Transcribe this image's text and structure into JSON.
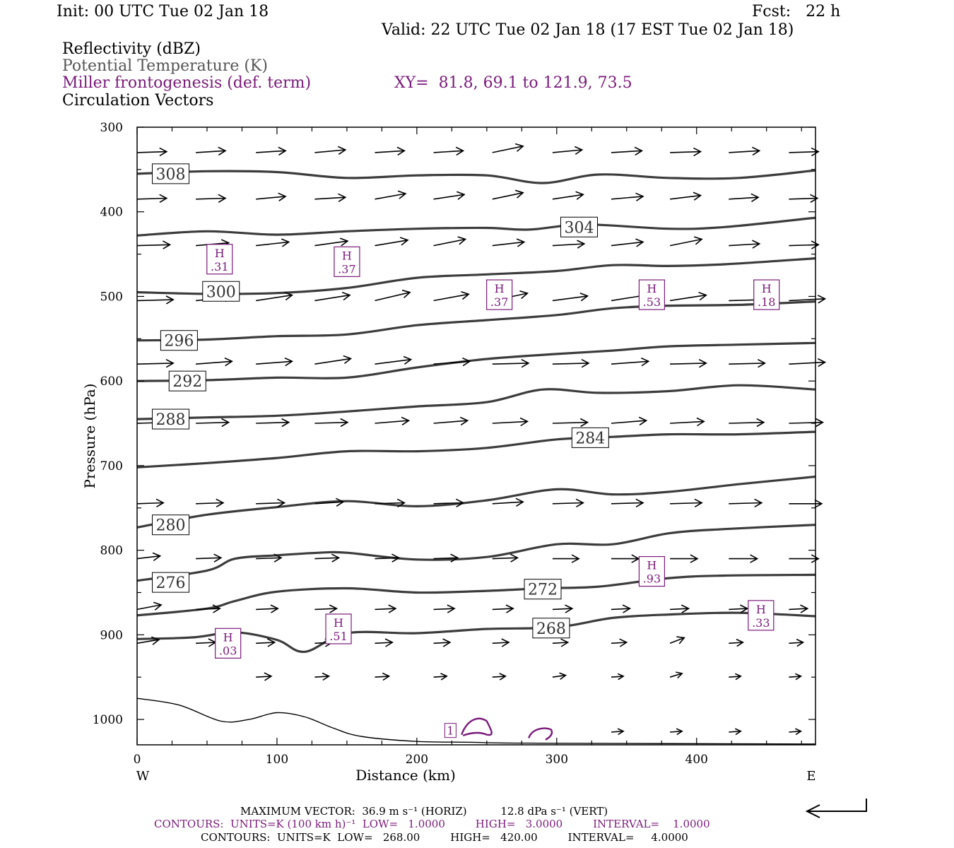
{
  "header": {
    "init": "Init: 00 UTC Tue 02 Jan 18",
    "fcst": "Fcst:   22 h",
    "valid": "Valid: 22 UTC Tue 02 Jan 18 (17 EST Tue 02 Jan 18)",
    "fields": [
      "Reflectivity (dBZ)",
      "Potential Temperature (K)",
      "Miller frontogenesis (def. term)",
      "Circulation Vectors"
    ],
    "xy": "XY=  81.8, 69.1 to 121.9, 73.5"
  },
  "colors": {
    "theta": "#3c3c3c",
    "fronto": "#7a1a7a",
    "vector": "#000000",
    "terrain": "#000000"
  },
  "chart_data": {
    "type": "line",
    "xlabel": "Distance (km)",
    "ylabel": "Pressure (hPa)",
    "xlim": [
      0,
      485
    ],
    "ylim": [
      1030,
      300
    ],
    "xticks": [
      0,
      100,
      200,
      300,
      400
    ],
    "yticks": [
      300,
      400,
      500,
      600,
      700,
      800,
      900,
      1000
    ],
    "x_left_label": "W",
    "x_right_label": "E",
    "theta_contours": [
      {
        "label": "308",
        "label_at": [
          24,
          355
        ],
        "points": [
          [
            0,
            355
          ],
          [
            50,
            352
          ],
          [
            100,
            353
          ],
          [
            150,
            360
          ],
          [
            200,
            357
          ],
          [
            250,
            357
          ],
          [
            290,
            366
          ],
          [
            330,
            356
          ],
          [
            380,
            360
          ],
          [
            430,
            360
          ],
          [
            485,
            351
          ]
        ]
      },
      {
        "label": "304",
        "label_at": [
          316,
          418
        ],
        "points": [
          [
            0,
            428
          ],
          [
            50,
            423
          ],
          [
            100,
            427
          ],
          [
            150,
            423
          ],
          [
            200,
            420
          ],
          [
            250,
            419
          ],
          [
            280,
            421
          ],
          [
            320,
            415
          ],
          [
            380,
            420
          ],
          [
            420,
            418
          ],
          [
            485,
            407
          ]
        ]
      },
      {
        "label": "300",
        "label_at": [
          60,
          494
        ],
        "points": [
          [
            0,
            495
          ],
          [
            50,
            497
          ],
          [
            100,
            496
          ],
          [
            150,
            490
          ],
          [
            200,
            478
          ],
          [
            250,
            474
          ],
          [
            300,
            470
          ],
          [
            340,
            463
          ],
          [
            380,
            464
          ],
          [
            420,
            462
          ],
          [
            485,
            455
          ]
        ]
      },
      {
        "label": "296",
        "label_at": [
          30,
          552
        ],
        "points": [
          [
            0,
            552
          ],
          [
            50,
            551
          ],
          [
            100,
            547
          ],
          [
            150,
            545
          ],
          [
            200,
            534
          ],
          [
            250,
            528
          ],
          [
            300,
            522
          ],
          [
            340,
            514
          ],
          [
            380,
            511
          ],
          [
            430,
            510
          ],
          [
            485,
            506
          ]
        ]
      },
      {
        "label": "292",
        "label_at": [
          36,
          600
        ],
        "points": [
          [
            0,
            600
          ],
          [
            50,
            599
          ],
          [
            100,
            596
          ],
          [
            150,
            596
          ],
          [
            200,
            584
          ],
          [
            250,
            574
          ],
          [
            300,
            568
          ],
          [
            340,
            564
          ],
          [
            380,
            559
          ],
          [
            430,
            557
          ],
          [
            485,
            555
          ]
        ]
      },
      {
        "label": "288",
        "label_at": [
          24,
          645
        ],
        "points": [
          [
            0,
            645
          ],
          [
            50,
            643
          ],
          [
            100,
            641
          ],
          [
            150,
            636
          ],
          [
            200,
            630
          ],
          [
            250,
            625
          ],
          [
            290,
            610
          ],
          [
            330,
            614
          ],
          [
            380,
            612
          ],
          [
            430,
            605
          ],
          [
            485,
            610
          ]
        ]
      },
      {
        "label": "284",
        "label_at": [
          324,
          667
        ],
        "points": [
          [
            0,
            702
          ],
          [
            50,
            697
          ],
          [
            100,
            691
          ],
          [
            150,
            683
          ],
          [
            200,
            683
          ],
          [
            250,
            679
          ],
          [
            300,
            669
          ],
          [
            340,
            666
          ],
          [
            380,
            663
          ],
          [
            430,
            663
          ],
          [
            485,
            660
          ]
        ]
      },
      {
        "label": "280",
        "label_at": [
          24,
          770
        ],
        "points": [
          [
            0,
            773
          ],
          [
            50,
            758
          ],
          [
            100,
            749
          ],
          [
            150,
            742
          ],
          [
            200,
            748
          ],
          [
            250,
            741
          ],
          [
            300,
            728
          ],
          [
            340,
            734
          ],
          [
            380,
            731
          ],
          [
            430,
            722
          ],
          [
            485,
            713
          ]
        ]
      },
      {
        "label": "276",
        "label_at": [
          24,
          838
        ],
        "points": [
          [
            0,
            836
          ],
          [
            50,
            824
          ],
          [
            70,
            810
          ],
          [
            100,
            806
          ],
          [
            130,
            803
          ],
          [
            150,
            803
          ],
          [
            200,
            811
          ],
          [
            250,
            808
          ],
          [
            300,
            793
          ],
          [
            340,
            793
          ],
          [
            380,
            780
          ],
          [
            420,
            775
          ],
          [
            485,
            770
          ]
        ]
      },
      {
        "label": "272",
        "label_at": [
          290,
          846
        ],
        "points": [
          [
            0,
            877
          ],
          [
            50,
            869
          ],
          [
            70,
            860
          ],
          [
            100,
            849
          ],
          [
            150,
            845
          ],
          [
            200,
            850
          ],
          [
            250,
            848
          ],
          [
            290,
            845
          ],
          [
            330,
            843
          ],
          [
            380,
            833
          ],
          [
            420,
            830
          ],
          [
            485,
            829
          ]
        ]
      },
      {
        "label": "268",
        "label_at": [
          296,
          892
        ],
        "points": [
          [
            0,
            905
          ],
          [
            40,
            903
          ],
          [
            70,
            897
          ],
          [
            100,
            906
          ],
          [
            120,
            920
          ],
          [
            150,
            898
          ],
          [
            200,
            898
          ],
          [
            250,
            893
          ],
          [
            300,
            891
          ],
          [
            340,
            880
          ],
          [
            380,
            876
          ],
          [
            430,
            874
          ],
          [
            485,
            878
          ]
        ]
      }
    ],
    "terrain_line": [
      [
        0,
        975
      ],
      [
        30,
        983
      ],
      [
        60,
        1002
      ],
      [
        80,
        1000
      ],
      [
        100,
        992
      ],
      [
        120,
        997
      ],
      [
        140,
        1010
      ],
      [
        160,
        1020
      ],
      [
        200,
        1026
      ],
      [
        240,
        1027
      ],
      [
        280,
        1028
      ],
      [
        485,
        1029
      ]
    ],
    "fronto_maxima": [
      {
        "label": "H",
        "value": ".31",
        "at": [
          59,
          456
        ]
      },
      {
        "label": "H",
        "value": ".37",
        "at": [
          150,
          459
        ]
      },
      {
        "label": "H",
        "value": ".37",
        "at": [
          259,
          498
        ]
      },
      {
        "label": "H",
        "value": ".53",
        "at": [
          368,
          498
        ]
      },
      {
        "label": "H",
        "value": ".18",
        "at": [
          450,
          498
        ]
      },
      {
        "label": "H",
        "value": ".93",
        "at": [
          368,
          825
        ]
      },
      {
        "label": "H",
        "value": ".33",
        "at": [
          446,
          877
        ]
      },
      {
        "label": "H",
        "value": ".51",
        "at": [
          144,
          893
        ]
      },
      {
        "label": "H",
        "value": ".03",
        "at": [
          65,
          910
        ]
      }
    ],
    "reflectivity_label": "1",
    "vector_rows": [
      {
        "p": 330,
        "x": [
          0,
          42,
          85,
          127,
          170,
          212,
          254,
          297,
          339,
          381,
          423,
          466
        ],
        "u": [
          27,
          27,
          27,
          28,
          27,
          27,
          28,
          27,
          28,
          28,
          28,
          27
        ],
        "w": [
          -1,
          -2,
          -2,
          -3,
          -2,
          -2,
          -7,
          -3,
          -2,
          -1,
          -2,
          -1
        ]
      },
      {
        "p": 385,
        "x": [
          0,
          42,
          85,
          127,
          170,
          212,
          254,
          297,
          339,
          381,
          423,
          466
        ],
        "u": [
          27,
          27,
          27,
          28,
          28,
          28,
          28,
          28,
          29,
          28,
          27,
          26
        ],
        "w": [
          -1,
          -1,
          -3,
          -2,
          -6,
          -5,
          -7,
          -5,
          -3,
          -4,
          -2,
          -1
        ]
      },
      {
        "p": 440,
        "x": [
          0,
          42,
          85,
          127,
          170,
          212,
          254,
          297,
          339,
          381,
          423,
          466
        ],
        "u": [
          30,
          30,
          30,
          30,
          30,
          29,
          29,
          29,
          29,
          29,
          28,
          27
        ],
        "w": [
          -1,
          -3,
          -4,
          -5,
          -6,
          -7,
          -4,
          -2,
          -4,
          -7,
          -2,
          -1
        ]
      },
      {
        "p": 505,
        "x": [
          0,
          42,
          85,
          127,
          170,
          212,
          254,
          297,
          339,
          381,
          423,
          466
        ],
        "u": [
          33,
          33,
          33,
          32,
          32,
          32,
          32,
          32,
          32,
          33,
          33,
          33
        ],
        "w": [
          -1,
          -4,
          -6,
          -6,
          -9,
          -7,
          -8,
          -5,
          -6,
          -6,
          -1,
          -2
        ]
      },
      {
        "p": 580,
        "x": [
          0,
          42,
          85,
          127,
          170,
          212,
          254,
          297,
          339,
          381,
          423,
          466
        ],
        "u": [
          33,
          33,
          33,
          33,
          33,
          33,
          33,
          33,
          34,
          33,
          33,
          33
        ],
        "w": [
          -1,
          -3,
          -3,
          -6,
          -5,
          -3,
          -1,
          -1,
          -3,
          -1,
          -1,
          -2
        ]
      },
      {
        "p": 650,
        "x": [
          0,
          42,
          85,
          127,
          170,
          212,
          254,
          297,
          339,
          381,
          423,
          466
        ],
        "u": [
          30,
          30,
          30,
          30,
          31,
          31,
          32,
          32,
          32,
          31,
          32,
          31
        ],
        "w": [
          -1,
          -1,
          -1,
          -1,
          -3,
          -3,
          -2,
          -1,
          -3,
          -2,
          -1,
          -1
        ]
      },
      {
        "p": 745,
        "x": [
          0,
          42,
          85,
          127,
          170,
          212,
          254,
          297,
          339,
          381,
          423,
          466
        ],
        "u": [
          24,
          25,
          26,
          26,
          27,
          27,
          28,
          28,
          29,
          29,
          30,
          30
        ],
        "w": [
          -1,
          -1,
          -1,
          -2,
          -1,
          -1,
          -2,
          -1,
          -1,
          -1,
          -1,
          0
        ]
      },
      {
        "p": 810,
        "x": [
          0,
          42,
          85,
          127,
          170,
          212,
          254,
          297,
          339,
          381,
          423,
          466
        ],
        "u": [
          21,
          23,
          23,
          22,
          22,
          22,
          23,
          24,
          25,
          25,
          26,
          27
        ],
        "w": [
          -3,
          -1,
          -1,
          -1,
          -1,
          -1,
          -1,
          0,
          0,
          0,
          0,
          0
        ]
      },
      {
        "p": 870,
        "x": [
          0,
          42,
          85,
          127,
          170,
          212,
          254,
          297,
          339,
          381,
          423,
          466
        ],
        "u": [
          22,
          22,
          20,
          20,
          19,
          19,
          19,
          18,
          17,
          17,
          17,
          17
        ],
        "w": [
          -5,
          -1,
          -1,
          -1,
          -1,
          -1,
          -1,
          -1,
          -1,
          -1,
          -1,
          -1
        ]
      },
      {
        "p": 910,
        "x": [
          0,
          42,
          85,
          127,
          170,
          212,
          254,
          297,
          339,
          381,
          423,
          466
        ],
        "u": [
          20,
          18,
          17,
          16,
          16,
          15,
          15,
          14,
          14,
          13,
          13,
          13
        ],
        "w": [
          -4,
          -1,
          -1,
          -1,
          -1,
          -1,
          -1,
          -1,
          -1,
          -6,
          -1,
          -1
        ]
      },
      {
        "p": 950,
        "x": [
          0,
          42,
          85,
          127,
          170,
          212,
          254,
          297,
          339,
          381,
          423,
          466
        ],
        "u": [
          0,
          0,
          14,
          13,
          13,
          12,
          12,
          12,
          11,
          11,
          11,
          11
        ],
        "w": [
          0,
          0,
          -1,
          -1,
          -1,
          -1,
          -1,
          -2,
          -1,
          -4,
          -1,
          -1
        ]
      },
      {
        "p": 1015,
        "x": [
          0,
          42,
          85,
          127,
          170,
          212,
          254,
          297,
          339,
          381,
          423,
          466
        ],
        "u": [
          0,
          0,
          0,
          0,
          0,
          0,
          0,
          0,
          11,
          11,
          11,
          11
        ],
        "w": [
          0,
          0,
          0,
          0,
          0,
          0,
          0,
          0,
          -1,
          -1,
          -1,
          -1
        ]
      }
    ]
  },
  "footer": {
    "max_vector": "MAXIMUM VECTOR:  36.9 m s⁻¹ (HORIZ)          12.8 dPa s⁻¹ (VERT)",
    "contours1": "CONTOURS:  UNITS=K (100 km h)⁻¹  LOW=   1.0000         HIGH=   3.0000         INTERVAL=    1.0000",
    "contours2": "CONTOURS:  UNITS=K  LOW=   268.00         HIGH=   420.00         INTERVAL=     4.0000"
  }
}
